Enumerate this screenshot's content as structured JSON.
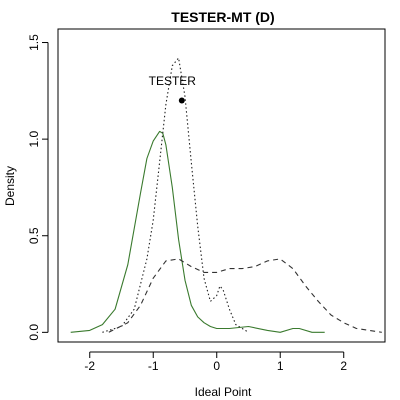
{
  "chart_data": {
    "type": "line",
    "title": "TESTER-MT (D)",
    "xlabel": "Ideal Point",
    "ylabel": "Density",
    "xlim": [
      -2.5,
      2.65
    ],
    "ylim": [
      -0.05,
      1.57
    ],
    "x_ticks": [
      -2,
      -1,
      0,
      1,
      2
    ],
    "x_tick_labels": [
      "-2",
      "-1",
      "0",
      "1",
      "2"
    ],
    "y_ticks": [
      0.0,
      0.5,
      1.0,
      1.5
    ],
    "y_tick_labels": [
      "0.0",
      "0.5",
      "1.0",
      "1.5"
    ],
    "grid": false,
    "legend": "none",
    "series": [
      {
        "style": "solid",
        "color": "#3a7a2e",
        "x": [
          -2.3,
          -2.0,
          -1.8,
          -1.6,
          -1.4,
          -1.2,
          -1.1,
          -1.0,
          -0.9,
          -0.85,
          -0.8,
          -0.7,
          -0.6,
          -0.5,
          -0.4,
          -0.3,
          -0.2,
          -0.1,
          0.0,
          0.2,
          0.5,
          0.8,
          1.0,
          1.2,
          1.3,
          1.5,
          1.7
        ],
        "y": [
          0.0,
          0.01,
          0.04,
          0.12,
          0.35,
          0.72,
          0.9,
          0.99,
          1.04,
          1.03,
          0.97,
          0.75,
          0.48,
          0.27,
          0.14,
          0.08,
          0.05,
          0.03,
          0.02,
          0.02,
          0.03,
          0.01,
          0.0,
          0.02,
          0.02,
          0.0,
          0.0
        ]
      },
      {
        "style": "dotted",
        "color": "#222222",
        "x": [
          -1.8,
          -1.5,
          -1.3,
          -1.1,
          -1.0,
          -0.9,
          -0.8,
          -0.7,
          -0.6,
          -0.5,
          -0.4,
          -0.3,
          -0.2,
          -0.1,
          0.0,
          0.05,
          0.1,
          0.2,
          0.3,
          0.5
        ],
        "y": [
          0.0,
          0.03,
          0.12,
          0.38,
          0.58,
          0.88,
          1.18,
          1.38,
          1.42,
          1.22,
          0.88,
          0.55,
          0.28,
          0.16,
          0.19,
          0.24,
          0.22,
          0.12,
          0.04,
          0.0
        ]
      },
      {
        "style": "dashed",
        "color": "#333333",
        "x": [
          -1.7,
          -1.4,
          -1.2,
          -1.0,
          -0.8,
          -0.6,
          -0.4,
          -0.2,
          0.0,
          0.2,
          0.4,
          0.6,
          0.8,
          1.0,
          1.2,
          1.4,
          1.6,
          1.8,
          2.0,
          2.2,
          2.4,
          2.6
        ],
        "y": [
          0.0,
          0.05,
          0.14,
          0.28,
          0.37,
          0.38,
          0.34,
          0.31,
          0.31,
          0.33,
          0.33,
          0.34,
          0.37,
          0.38,
          0.33,
          0.24,
          0.16,
          0.09,
          0.05,
          0.02,
          0.01,
          0.0
        ]
      }
    ],
    "annotations": [
      {
        "text": "TESTER",
        "x": -0.7,
        "y": 1.28
      }
    ],
    "point": {
      "x": -0.55,
      "y": 1.2
    }
  }
}
